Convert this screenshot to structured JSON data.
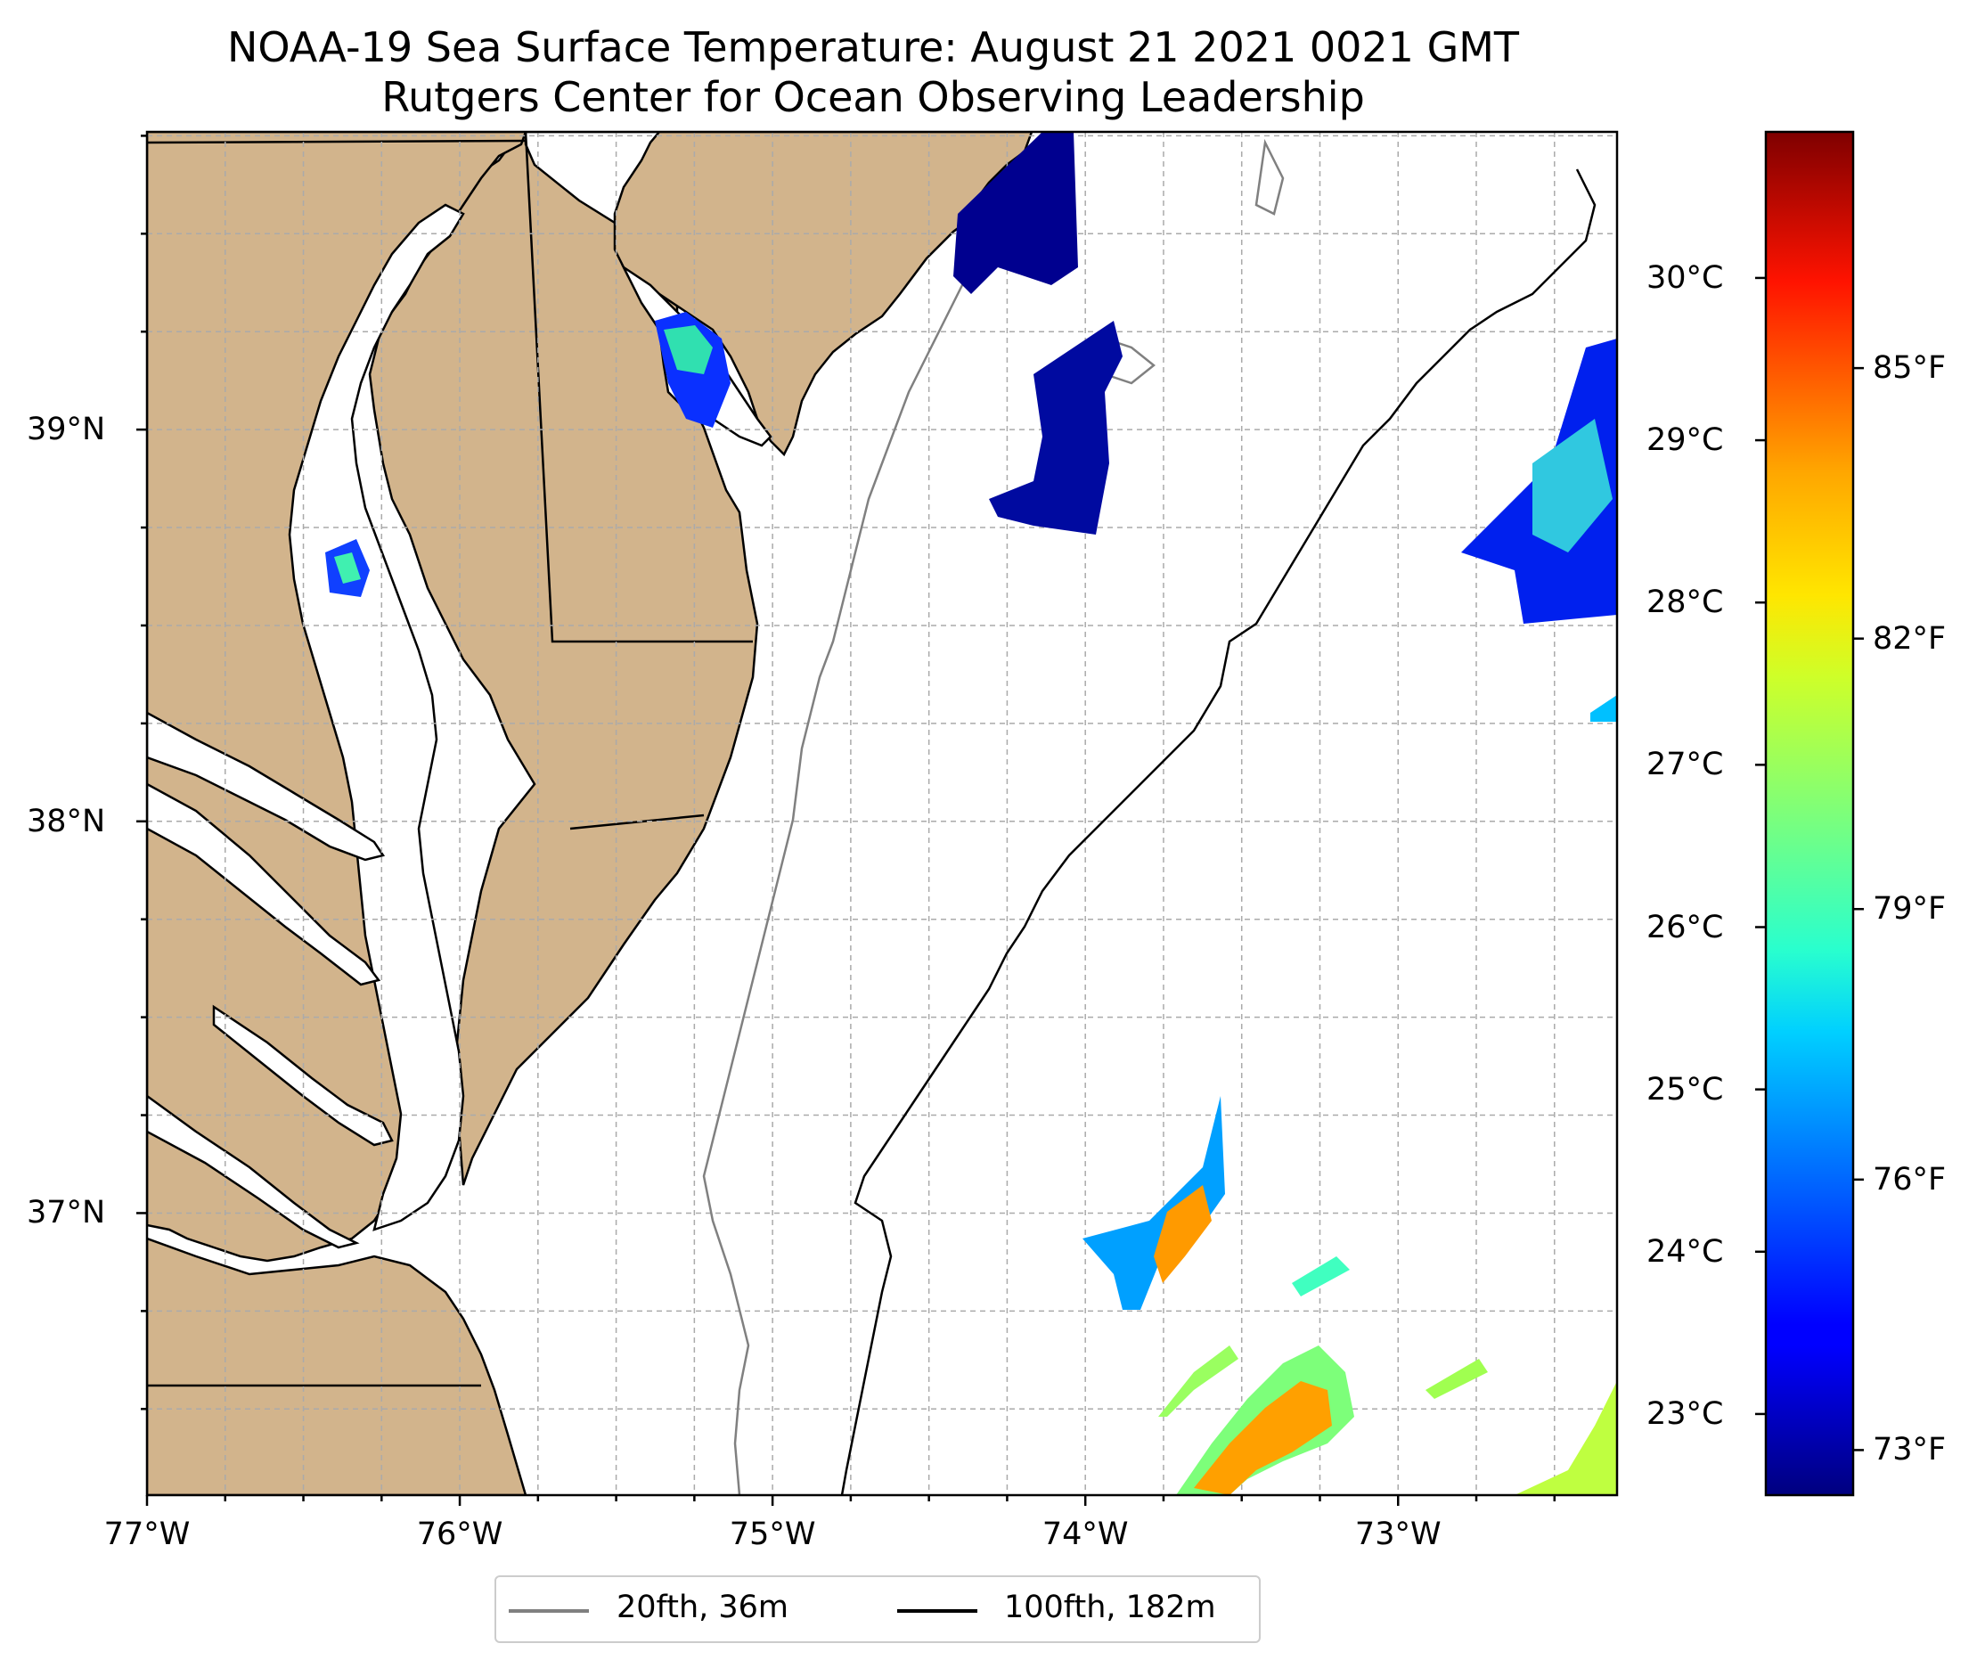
{
  "title": {
    "line1": "NOAA-19 Sea Surface Temperature: August 21 2021 0021 GMT",
    "line2": "Rutgers Center for Ocean Observing Leadership"
  },
  "map": {
    "lon_range": [
      -77.0,
      -72.3
    ],
    "lat_range": [
      36.28,
      39.76
    ],
    "lon_ticks": [
      {
        "value": -77,
        "label": "77°W"
      },
      {
        "value": -76,
        "label": "76°W"
      },
      {
        "value": -75,
        "label": "75°W"
      },
      {
        "value": -74,
        "label": "74°W"
      },
      {
        "value": -73,
        "label": "73°W"
      }
    ],
    "lat_ticks": [
      {
        "value": 39,
        "label": "39°N"
      },
      {
        "value": 38,
        "label": "38°N"
      },
      {
        "value": 37,
        "label": "37°N"
      }
    ],
    "gridlines": "on, dashed",
    "land_color": "#d2b48c",
    "ocean_color": "#ffffff"
  },
  "colorbar": {
    "colormap": "jet",
    "range_celsius": [
      22.5,
      30.9
    ],
    "celsius_ticks": [
      {
        "value": 23,
        "label": "23°C"
      },
      {
        "value": 24,
        "label": "24°C"
      },
      {
        "value": 25,
        "label": "25°C"
      },
      {
        "value": 26,
        "label": "26°C"
      },
      {
        "value": 27,
        "label": "27°C"
      },
      {
        "value": 28,
        "label": "28°C"
      },
      {
        "value": 29,
        "label": "29°C"
      },
      {
        "value": 30,
        "label": "30°C"
      }
    ],
    "fahrenheit_ticks": [
      {
        "value": 73,
        "label": "73°F"
      },
      {
        "value": 76,
        "label": "76°F"
      },
      {
        "value": 79,
        "label": "79°F"
      },
      {
        "value": 82,
        "label": "82°F"
      },
      {
        "value": 85,
        "label": "85°F"
      }
    ]
  },
  "legend": {
    "placement": "below map, centered",
    "entries": [
      {
        "label": "20fth, 36m",
        "color": "#808080"
      },
      {
        "label": "100fth, 182m",
        "color": "#000000"
      }
    ]
  }
}
